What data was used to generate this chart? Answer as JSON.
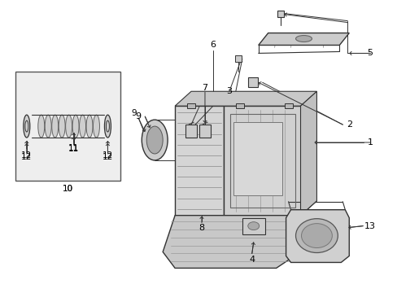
{
  "figsize": [
    4.89,
    3.6
  ],
  "dpi": 100,
  "bg": "#ffffff",
  "lc": "#333333",
  "tc": "#000000",
  "gray_fill": "#e8e8e8",
  "part_fill": "#d8d8d8"
}
